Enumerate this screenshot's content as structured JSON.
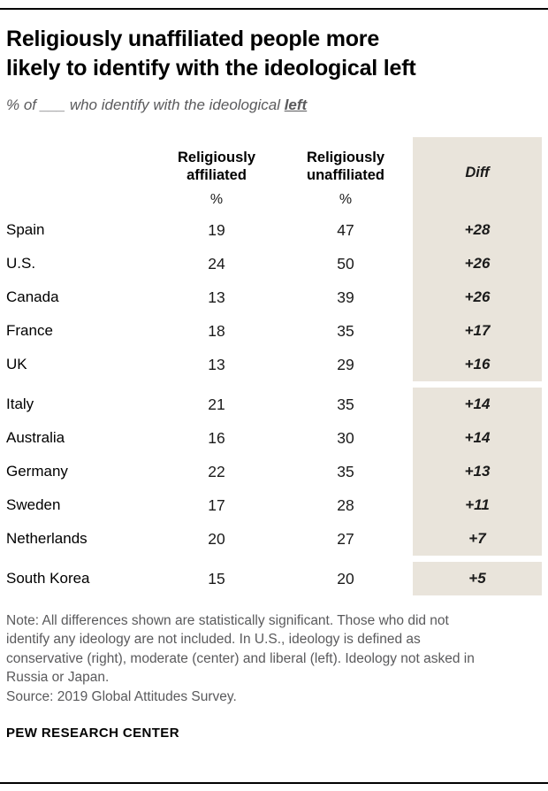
{
  "header": {
    "title": "Religiously unaffiliated people more\nlikely to identify with the ideological left",
    "subtitle_prefix": "% of ___ who identify with the ideological ",
    "subtitle_emphasis": "left"
  },
  "table": {
    "headers": {
      "affiliated": "Religiously\naffiliated",
      "unaffiliated": "Religiously\nunaffiliated",
      "diff": "Diff"
    },
    "percent_symbol": "%",
    "rows": [
      {
        "country": "Spain",
        "affiliated": "19",
        "unaffiliated": "47",
        "diff": "+28"
      },
      {
        "country": "U.S.",
        "affiliated": "24",
        "unaffiliated": "50",
        "diff": "+26"
      },
      {
        "country": "Canada",
        "affiliated": "13",
        "unaffiliated": "39",
        "diff": "+26"
      },
      {
        "country": "France",
        "affiliated": "18",
        "unaffiliated": "35",
        "diff": "+17"
      },
      {
        "country": "UK",
        "affiliated": "13",
        "unaffiliated": "29",
        "diff": "+16"
      },
      {
        "country": "Italy",
        "affiliated": "21",
        "unaffiliated": "35",
        "diff": "+14"
      },
      {
        "country": "Australia",
        "affiliated": "16",
        "unaffiliated": "30",
        "diff": "+14"
      },
      {
        "country": "Germany",
        "affiliated": "22",
        "unaffiliated": "35",
        "diff": "+13"
      },
      {
        "country": "Sweden",
        "affiliated": "17",
        "unaffiliated": "28",
        "diff": "+11"
      },
      {
        "country": "Netherlands",
        "affiliated": "20",
        "unaffiliated": "27",
        "diff": "+7"
      },
      {
        "country": "South Korea",
        "affiliated": "15",
        "unaffiliated": "20",
        "diff": "+5"
      }
    ]
  },
  "footer": {
    "note": "Note: All differences shown are statistically significant. Those who did not identify any ideology are not included. In U.S., ideology is defined as conservative (right), moderate (center) and liberal (left). Ideology not asked in Russia or Japan.",
    "source": "Source: 2019 Global Attitudes Survey.",
    "brand": "PEW RESEARCH CENTER"
  },
  "colors": {
    "diff_bg": "#e9e4db",
    "note_gray": "#5a5a5c",
    "rule_black": "#000000"
  },
  "chart_data": {
    "type": "table",
    "title": "Religiously unaffiliated people more likely to identify with the ideological left",
    "subtitle": "% of ___ who identify with the ideological left",
    "columns": [
      "Country",
      "Religiously affiliated (%)",
      "Religiously unaffiliated (%)",
      "Diff"
    ],
    "rows": [
      {
        "country": "Spain",
        "religiously_affiliated_pct": 19,
        "religiously_unaffiliated_pct": 47,
        "diff": 28
      },
      {
        "country": "U.S.",
        "religiously_affiliated_pct": 24,
        "religiously_unaffiliated_pct": 50,
        "diff": 26
      },
      {
        "country": "Canada",
        "religiously_affiliated_pct": 13,
        "religiously_unaffiliated_pct": 39,
        "diff": 26
      },
      {
        "country": "France",
        "religiously_affiliated_pct": 18,
        "religiously_unaffiliated_pct": 35,
        "diff": 17
      },
      {
        "country": "UK",
        "religiously_affiliated_pct": 13,
        "religiously_unaffiliated_pct": 29,
        "diff": 16
      },
      {
        "country": "Italy",
        "religiously_affiliated_pct": 21,
        "religiously_unaffiliated_pct": 35,
        "diff": 14
      },
      {
        "country": "Australia",
        "religiously_affiliated_pct": 16,
        "religiously_unaffiliated_pct": 30,
        "diff": 14
      },
      {
        "country": "Germany",
        "religiously_affiliated_pct": 22,
        "religiously_unaffiliated_pct": 35,
        "diff": 13
      },
      {
        "country": "Sweden",
        "religiously_affiliated_pct": 17,
        "religiously_unaffiliated_pct": 28,
        "diff": 11
      },
      {
        "country": "Netherlands",
        "religiously_affiliated_pct": 20,
        "religiously_unaffiliated_pct": 27,
        "diff": 7
      },
      {
        "country": "South Korea",
        "religiously_affiliated_pct": 15,
        "religiously_unaffiliated_pct": 20,
        "diff": 5
      }
    ],
    "note": "All differences shown are statistically significant. Those who did not identify any ideology are not included. In U.S., ideology is defined as conservative (right), moderate (center) and liberal (left). Ideology not asked in Russia or Japan.",
    "source": "2019 Global Attitudes Survey",
    "row_groups": [
      [
        "Spain",
        "U.S.",
        "Canada",
        "France",
        "UK"
      ],
      [
        "Italy",
        "Australia",
        "Germany",
        "Sweden",
        "Netherlands"
      ],
      [
        "South Korea"
      ]
    ]
  }
}
